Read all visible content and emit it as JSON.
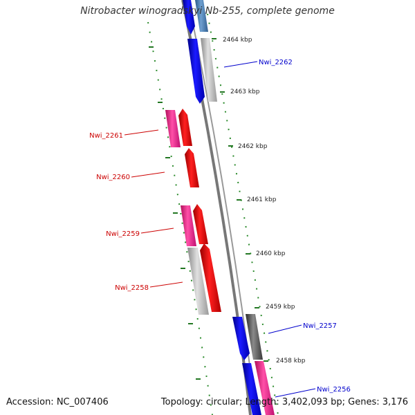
{
  "title": "Nitrobacter winogradskyi Nb-255, complete genome",
  "footer": {
    "accession": "Accession: NC_007406",
    "summary": "Topology: circular; Length: 3,402,093 bp; Genes: 3,176"
  },
  "colors": {
    "backbone": "#777777",
    "ticks": "#228B22",
    "reverse_label": "#CC0000",
    "forward_label": "#0000CC",
    "cds_forward": "#0000FF",
    "cds_reverse": "#FF0000",
    "gene_forward": "#4682B4",
    "gene_grey": "#BBBBBB",
    "gene_dark": "#555555",
    "gene_pink": "#FF3399"
  },
  "scale_labels": [
    "2464 kbp",
    "2463 kbp",
    "2462 kbp",
    "2461 kbp",
    "2460 kbp",
    "2459 kbp",
    "2458 kbp"
  ],
  "gene_labels": [
    {
      "text": "Nwi_2262",
      "strand": "forward"
    },
    {
      "text": "Nwi_2261",
      "strand": "reverse"
    },
    {
      "text": "Nwi_2260",
      "strand": "reverse"
    },
    {
      "text": "Nwi_2259",
      "strand": "reverse"
    },
    {
      "text": "Nwi_2258",
      "strand": "reverse"
    },
    {
      "text": "Nwi_2257",
      "strand": "forward"
    },
    {
      "text": "Nwi_2256",
      "strand": "forward"
    }
  ]
}
